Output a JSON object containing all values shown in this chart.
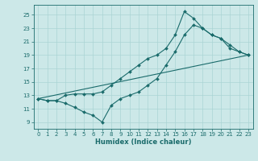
{
  "xlabel": "Humidex (Indice chaleur)",
  "bg_color": "#cce8e8",
  "line_color": "#1a6b6b",
  "grid_color": "#aad4d4",
  "xlim": [
    -0.5,
    23.5
  ],
  "ylim": [
    8.0,
    26.5
  ],
  "xticks": [
    0,
    1,
    2,
    3,
    4,
    5,
    6,
    7,
    8,
    9,
    10,
    11,
    12,
    13,
    14,
    15,
    16,
    17,
    18,
    19,
    20,
    21,
    22,
    23
  ],
  "yticks": [
    9,
    11,
    13,
    15,
    17,
    19,
    21,
    23,
    25
  ],
  "line1_x": [
    0,
    1,
    2,
    3,
    4,
    5,
    6,
    7,
    8,
    9,
    10,
    11,
    12,
    13,
    14,
    15,
    16,
    17,
    18,
    19,
    20,
    21,
    22,
    23
  ],
  "line1_y": [
    12.5,
    12.2,
    12.2,
    11.8,
    11.2,
    10.5,
    10.0,
    9.0,
    11.5,
    12.5,
    13.0,
    13.5,
    14.5,
    15.5,
    17.5,
    19.5,
    22.0,
    23.5,
    23.0,
    22.0,
    21.5,
    20.5,
    19.5,
    19.0
  ],
  "line2_x": [
    0,
    1,
    2,
    3,
    4,
    5,
    6,
    7,
    8,
    9,
    10,
    11,
    12,
    13,
    14,
    15,
    16,
    17,
    18,
    19,
    20,
    21,
    22,
    23
  ],
  "line2_y": [
    12.5,
    12.2,
    12.2,
    13.0,
    13.2,
    13.2,
    13.2,
    13.5,
    14.5,
    15.5,
    16.5,
    17.5,
    18.5,
    19.0,
    20.0,
    22.0,
    25.5,
    24.5,
    23.0,
    22.0,
    21.5,
    20.0,
    19.5,
    19.0
  ],
  "line3_x": [
    0,
    23
  ],
  "line3_y": [
    12.5,
    19.0
  ],
  "marker_size": 2.0,
  "line_width": 0.8,
  "tick_fontsize": 5.0,
  "xlabel_fontsize": 6.0
}
